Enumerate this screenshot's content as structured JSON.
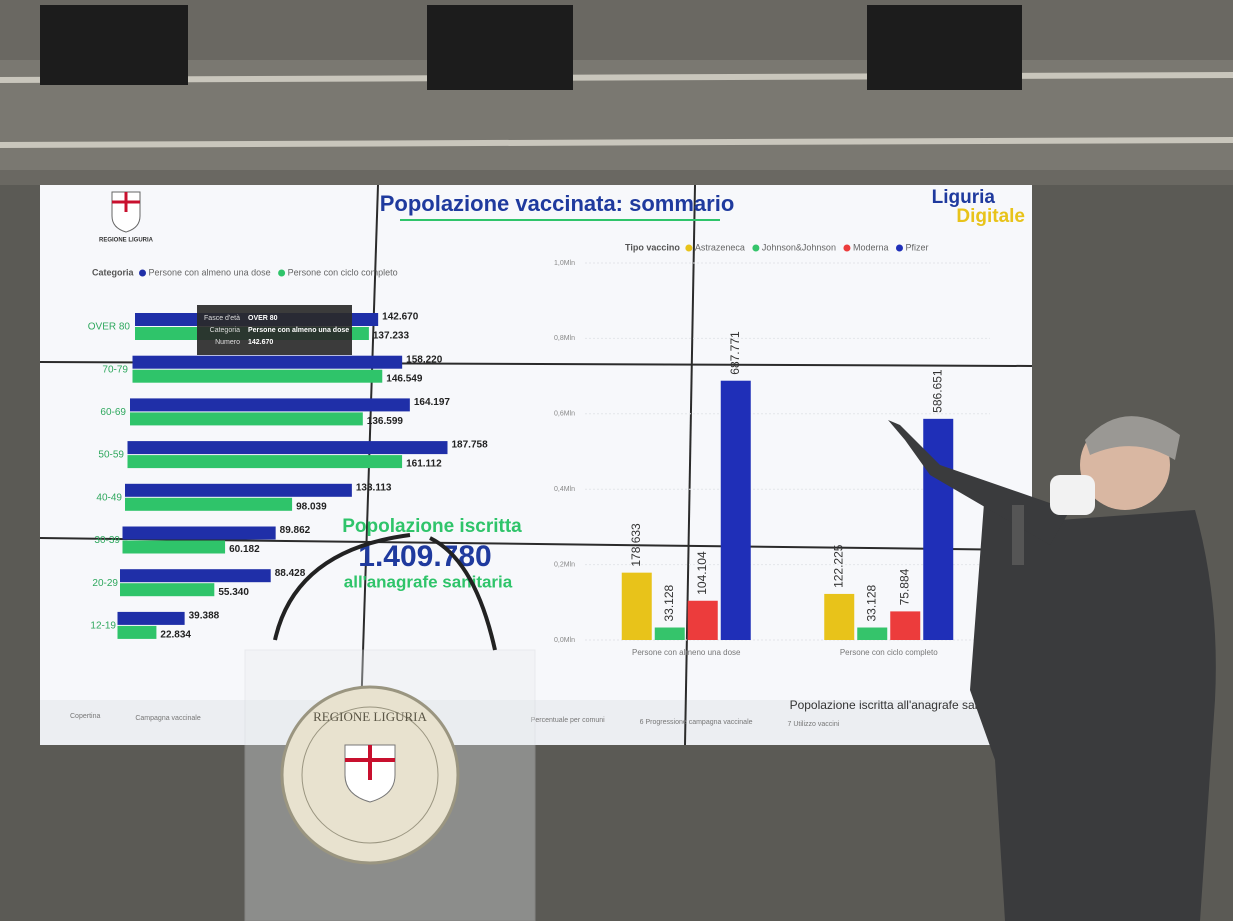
{
  "header": {
    "title": "Popolazione vaccinata: sommario",
    "brand_top": "Liguria",
    "brand_bottom": "Digitale",
    "logo_caption": "REGIONE LIGURIA"
  },
  "chart_data": [
    {
      "type": "hbar",
      "legend_title": "Categoria",
      "categories": [
        "OVER 80",
        "70-79",
        "60-69",
        "50-59",
        "40-49",
        "30-39",
        "20-29",
        "12-19"
      ],
      "series": [
        {
          "name": "Persone con almeno una dose",
          "color": "#1f2fa8",
          "values": [
            142670,
            158220,
            164197,
            187758,
            133113,
            89862,
            88428,
            39388
          ],
          "value_labels": [
            "142.670",
            "158.220",
            "164.197",
            "187.758",
            "133.113",
            "89.862",
            "88.428",
            "39.388"
          ]
        },
        {
          "name": "Persone con ciclo completo",
          "color": "#2fc46a",
          "values": [
            137233,
            146549,
            136599,
            161112,
            98039,
            60182,
            55340,
            22834
          ],
          "value_labels": [
            "137.233",
            "146.549",
            "136.599",
            "161.112",
            "98.039",
            "60.182",
            "55.340",
            "22.834"
          ]
        }
      ]
    },
    {
      "type": "bar",
      "legend_title": "Tipo vaccino",
      "categories": [
        "Persone con almeno una dose",
        "Persone con ciclo completo"
      ],
      "ylim": [
        0,
        1000000
      ],
      "yticks": [
        {
          "value": 0,
          "label": "0,0Mln"
        },
        {
          "value": 200000,
          "label": "0,2Mln"
        },
        {
          "value": 400000,
          "label": "0,4Mln"
        },
        {
          "value": 600000,
          "label": "0,6Mln"
        },
        {
          "value": 800000,
          "label": "0,8Mln"
        },
        {
          "value": 1000000,
          "label": "1,0Mln"
        }
      ],
      "grid": true,
      "series": [
        {
          "name": "Astrazeneca",
          "color": "#e8c31a",
          "values": [
            178633,
            122225
          ],
          "value_labels": [
            "178.633",
            "122.225"
          ]
        },
        {
          "name": "Johnson&Johnson",
          "color": "#35c46b",
          "values": [
            33128,
            33128
          ],
          "value_labels": [
            "33.128",
            "33.128"
          ]
        },
        {
          "name": "Moderna",
          "color": "#ec3c3c",
          "values": [
            104104,
            75884
          ],
          "value_labels": [
            "104.104",
            "75.884"
          ]
        },
        {
          "name": "Pfizer",
          "color": "#1f2fb8",
          "values": [
            687771,
            586651
          ],
          "value_labels": [
            "687.771",
            "586.651"
          ]
        }
      ]
    }
  ],
  "center": {
    "line1": "Popolazione iscritta",
    "number": "1.409.780",
    "line2": "all'anagrafe sanitaria"
  },
  "tooltip": {
    "rows": [
      [
        "Fasce d'età",
        "OVER 80"
      ],
      [
        "Categoria",
        "Persone con almeno una dose"
      ],
      [
        "Numero",
        "142.670"
      ]
    ]
  },
  "footer_note": "Popolazione iscritta all'anagrafe sanitaria ove",
  "tabs": [
    "Copertina",
    "Campagna vaccinale",
    "Percentuale per comuni",
    "6 Progressione campagna vaccinale",
    "7 Utilizzo vaccini"
  ],
  "podium_label": "REGIONE LIGURIA"
}
